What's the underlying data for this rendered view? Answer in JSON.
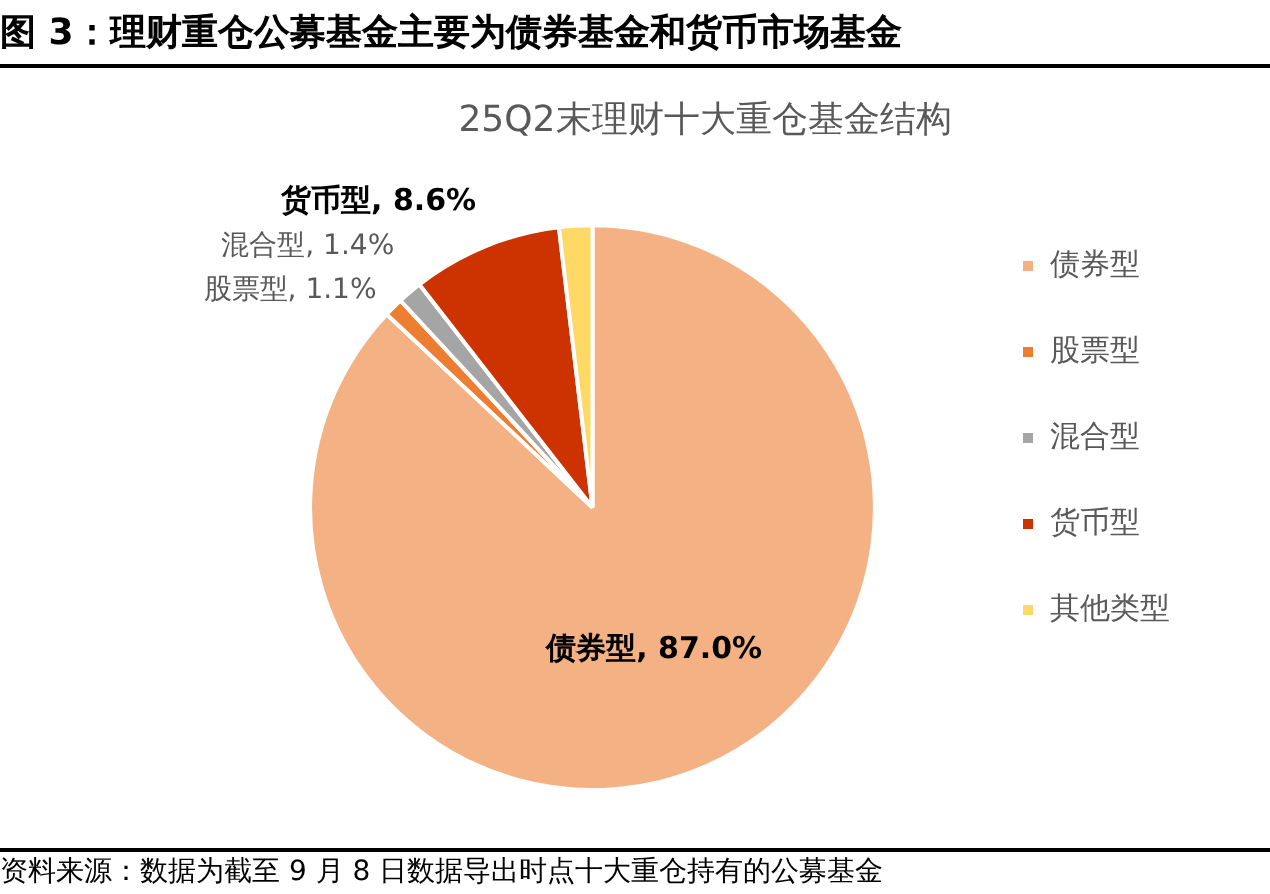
{
  "chart_data": {
    "type": "pie",
    "title": "图 3：理财重仓公募基金主要为债券基金和货币市场基金",
    "subtitle": "25Q2末理财十大重仓基金结构",
    "categories": [
      "债券型",
      "股票型",
      "混合型",
      "货币型",
      "其他类型"
    ],
    "values": [
      87.0,
      1.1,
      1.4,
      8.6,
      1.9
    ],
    "value_labels": [
      "债券型, 87.0%",
      "股票型, 1.1%",
      "混合型, 1.4%",
      "货币型, 8.6%",
      null
    ],
    "colors": [
      "#f4b183",
      "#ed7d31",
      "#a5a5a5",
      "#cc3300",
      "#ffd966"
    ],
    "legend": "right",
    "annotations": [
      "资料来源：数据为截至 9 月 8 日数据导出时点十大重仓持有的公募基金"
    ]
  }
}
